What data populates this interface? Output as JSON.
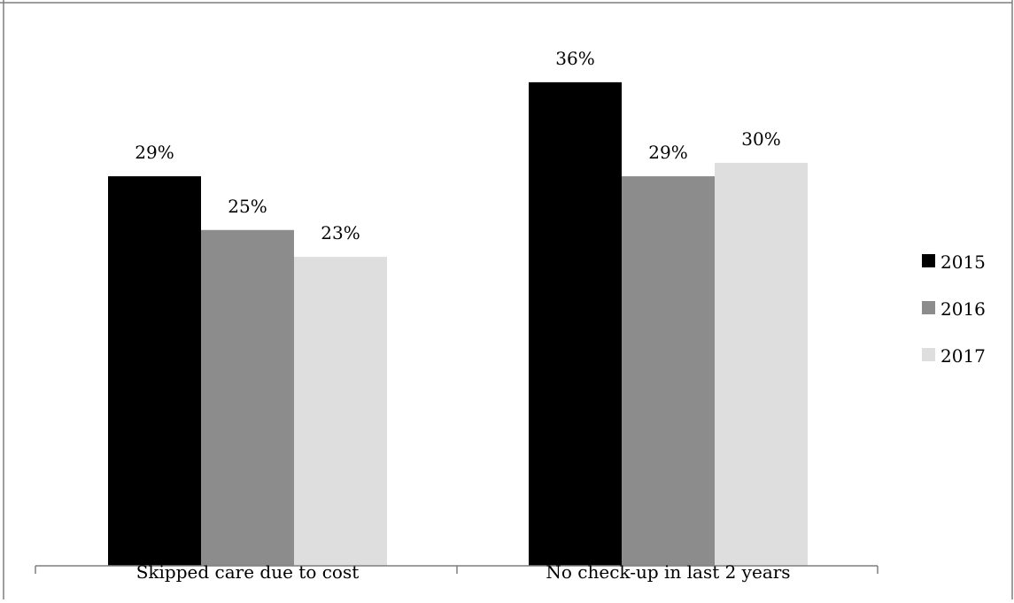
{
  "chart_data": {
    "type": "bar",
    "categories": [
      "Skipped care due to cost",
      "No check-up in last 2 years"
    ],
    "series": [
      {
        "name": "2015",
        "values": [
          29,
          36
        ],
        "labels": [
          "29%",
          "36%"
        ],
        "color": "#000000"
      },
      {
        "name": "2016",
        "values": [
          25,
          29
        ],
        "labels": [
          "25%",
          "29%"
        ],
        "color": "#8c8c8c"
      },
      {
        "name": "2017",
        "values": [
          23,
          30
        ],
        "labels": [
          "23%",
          "30%"
        ],
        "color": "#dedede"
      }
    ],
    "ylim": [
      0,
      40
    ],
    "grid": false,
    "legend_position": "right"
  }
}
